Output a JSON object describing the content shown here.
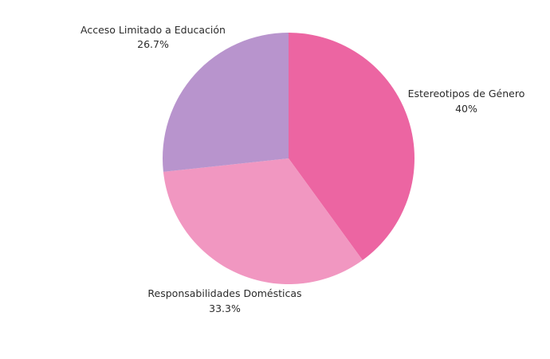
{
  "chart_data": {
    "type": "pie",
    "title": "",
    "start_angle_deg": 0,
    "direction": "clockwise",
    "legend": "none",
    "slices": [
      {
        "label": "Estereotipos de Género",
        "value": 40,
        "value_label": "40%",
        "color": "#ec65a2"
      },
      {
        "label": "Responsabilidades Domésticas",
        "value": 33.3,
        "value_label": "33.3%",
        "color": "#f197c1"
      },
      {
        "label": "Acceso Limitado a Educación",
        "value": 26.7,
        "value_label": "26.7%",
        "color": "#b894cd"
      }
    ]
  }
}
